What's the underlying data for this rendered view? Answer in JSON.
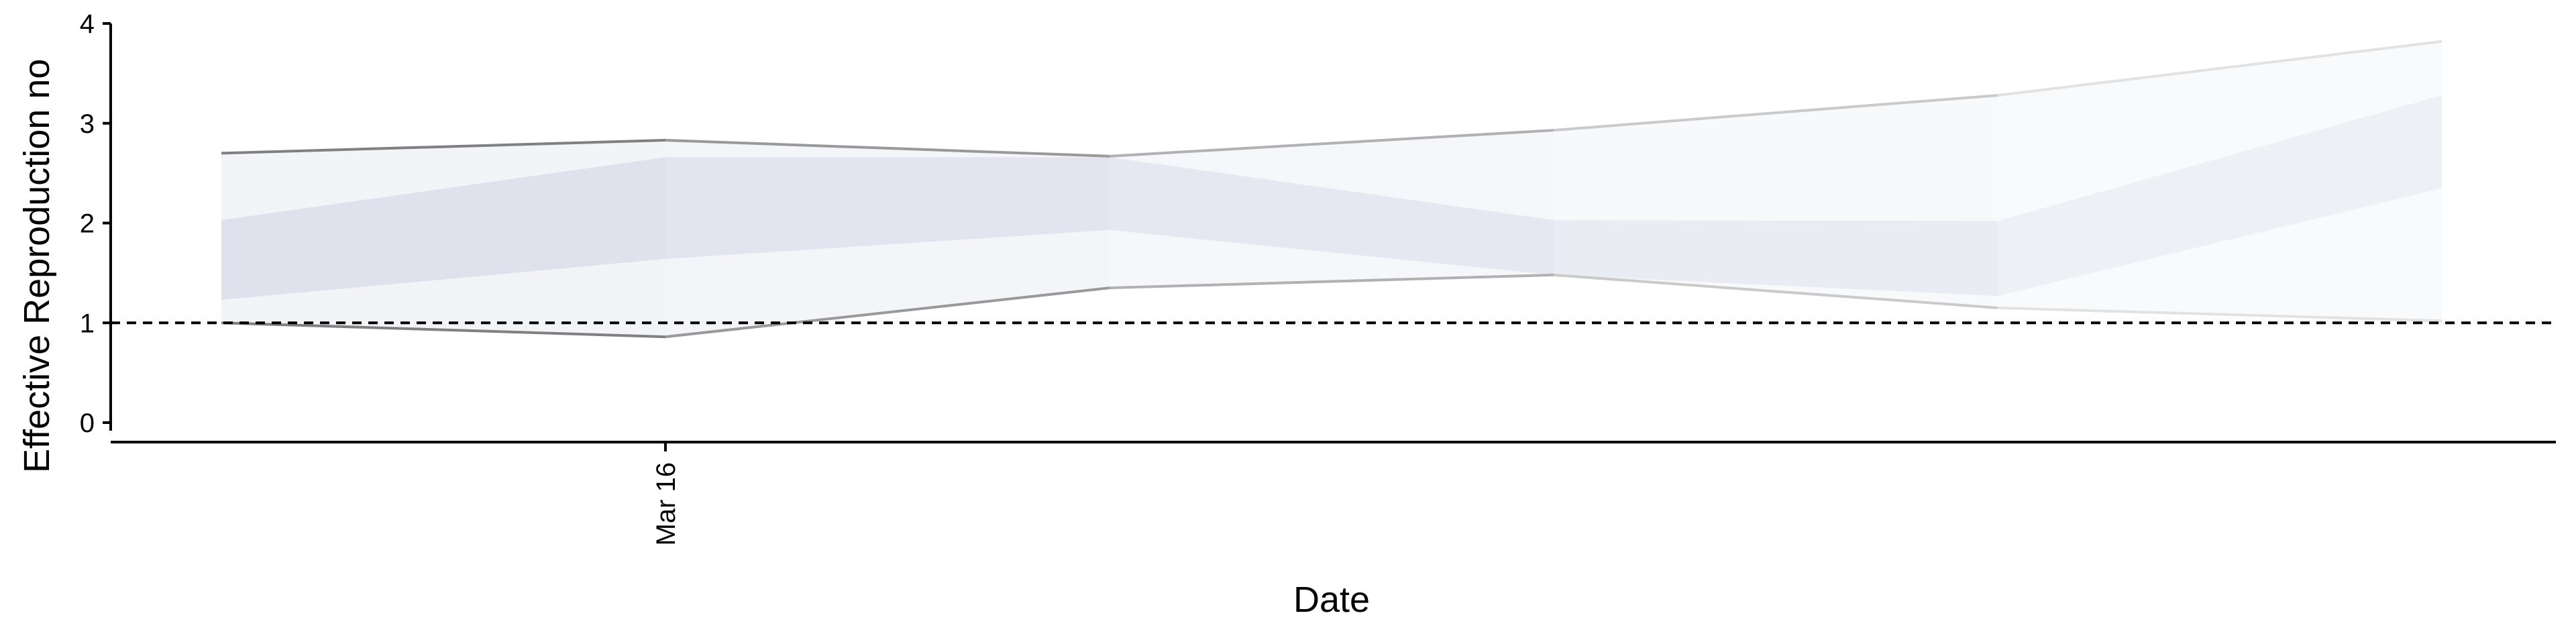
{
  "chart_data": {
    "type": "area",
    "title": "",
    "xlabel": "Date",
    "ylabel": "Effective Reproduction no",
    "ylim": [
      -0.25,
      4
    ],
    "y_ticks": [
      "0",
      "1",
      "2",
      "3",
      "4"
    ],
    "x_tick_labels": [
      {
        "label": "Mar 16",
        "index": 1
      }
    ],
    "threshold": 1,
    "grid": false,
    "legend": "none",
    "x": [
      0,
      1,
      2,
      3,
      4,
      5
    ],
    "upper_outer": [
      2.7,
      2.83,
      2.67,
      2.93,
      3.28,
      3.82
    ],
    "lower_outer": [
      1.0,
      0.86,
      1.35,
      1.48,
      1.15,
      1.02
    ],
    "upper_inner": [
      2.03,
      2.66,
      2.66,
      2.03,
      2.02,
      3.28
    ],
    "lower_inner": [
      1.23,
      1.64,
      1.93,
      1.48,
      1.27,
      2.35
    ],
    "colors": {
      "band_outer": "#eceef4",
      "band_inner": "#d6dae7",
      "outline_start": "#808080",
      "outline_end": "#e2e2e2",
      "threshold": "#000000",
      "axis": "#000000"
    }
  }
}
